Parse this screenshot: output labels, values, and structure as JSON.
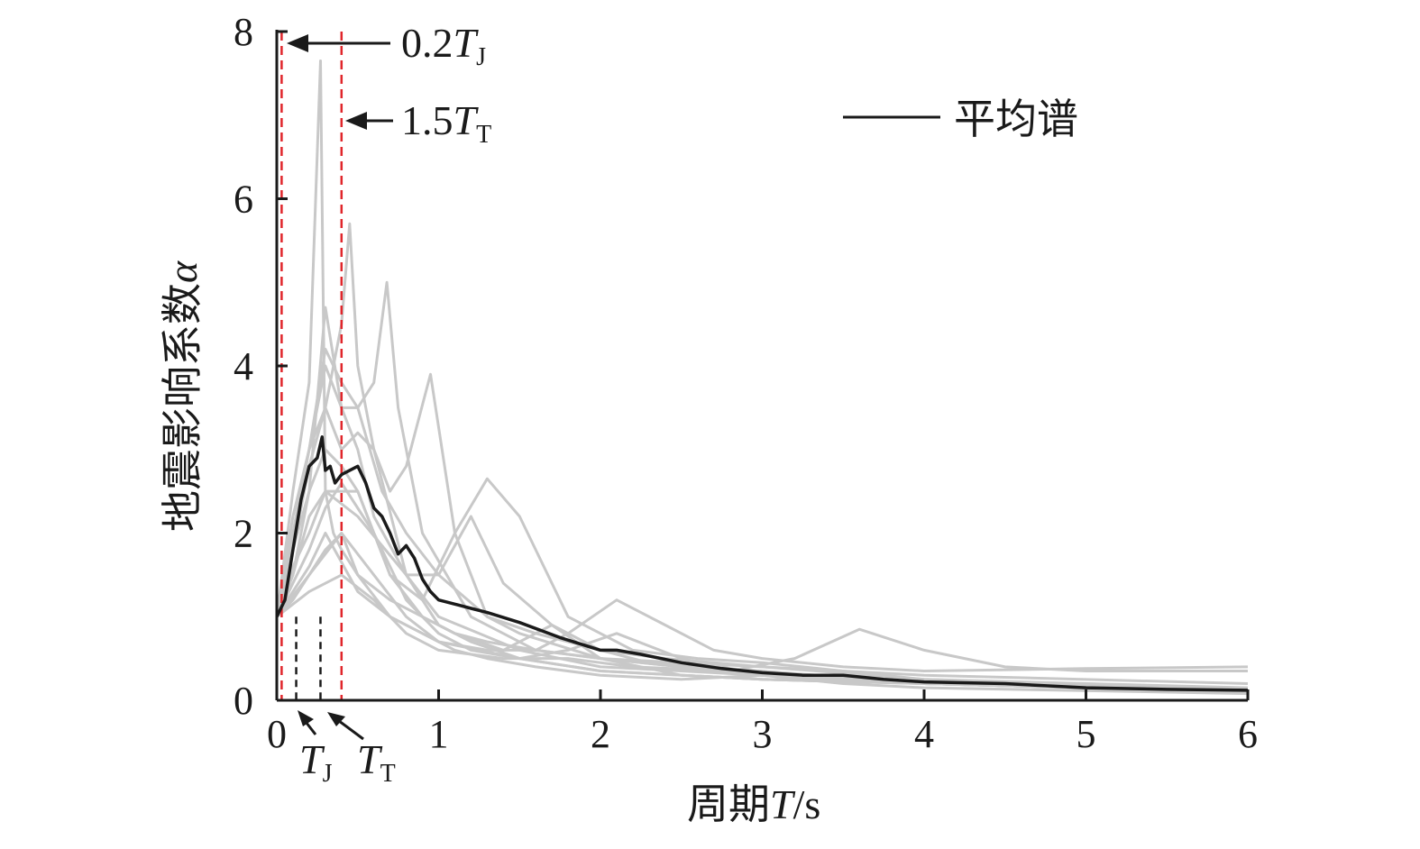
{
  "chart_data": {
    "type": "line",
    "title": "",
    "xlabel_prefix": "周期",
    "xlabel_var": "T",
    "xlabel_unit": "/s",
    "ylabel_prefix": "地震影响系数",
    "ylabel_var": "α",
    "xlim": [
      0,
      6
    ],
    "ylim": [
      0,
      8
    ],
    "xticks": [
      0,
      1,
      2,
      3,
      4,
      5,
      6
    ],
    "yticks": [
      0,
      2,
      4,
      6,
      8
    ],
    "grid": false,
    "legend": {
      "position": "top-right",
      "entries": [
        {
          "label": "平均谱",
          "color": "#1a1a1a"
        }
      ]
    },
    "colors": {
      "mean": "#1a1a1a",
      "records": "#c8c8c8",
      "boundary": "#e0262b",
      "marker": "#1a1a1a"
    },
    "vlines": [
      {
        "x": 0.03,
        "style": "dashed",
        "color": "#e0262b",
        "label": "0.2T_J"
      },
      {
        "x": 0.4,
        "style": "dashed",
        "color": "#e0262b",
        "label": "1.5T_T"
      },
      {
        "x": 0.12,
        "style": "dashed-short",
        "color": "#1a1a1a",
        "label": ""
      },
      {
        "x": 0.27,
        "style": "dashed-short",
        "color": "#1a1a1a",
        "label": "T_J"
      }
    ],
    "annotations": {
      "a1": {
        "base": "0.2",
        "var": "T",
        "sub": "J"
      },
      "a2": {
        "base": "1.5",
        "var": "T",
        "sub": "T"
      },
      "tj": {
        "var": "T",
        "sub": "J"
      },
      "tt": {
        "var": "T",
        "sub": "T"
      }
    },
    "mean_series": {
      "name": "平均谱",
      "x": [
        0.0,
        0.05,
        0.1,
        0.15,
        0.2,
        0.25,
        0.28,
        0.3,
        0.33,
        0.36,
        0.4,
        0.45,
        0.5,
        0.55,
        0.6,
        0.65,
        0.7,
        0.75,
        0.8,
        0.85,
        0.9,
        0.95,
        1.0,
        1.1,
        1.2,
        1.3,
        1.5,
        1.75,
        2.0,
        2.1,
        2.25,
        2.5,
        2.75,
        3.0,
        3.25,
        3.5,
        3.75,
        4.0,
        4.5,
        5.0,
        5.5,
        6.0
      ],
      "y": [
        1.0,
        1.2,
        1.8,
        2.4,
        2.8,
        2.9,
        3.15,
        2.75,
        2.8,
        2.6,
        2.7,
        2.75,
        2.8,
        2.6,
        2.3,
        2.2,
        2.0,
        1.75,
        1.85,
        1.7,
        1.45,
        1.3,
        1.2,
        1.15,
        1.1,
        1.05,
        0.93,
        0.75,
        0.6,
        0.6,
        0.55,
        0.45,
        0.38,
        0.33,
        0.3,
        0.3,
        0.25,
        0.22,
        0.2,
        0.15,
        0.13,
        0.12
      ]
    },
    "series": [
      {
        "x": [
          0,
          0.1,
          0.2,
          0.27,
          0.3,
          0.35,
          0.4,
          0.5,
          0.7,
          1.0,
          1.5,
          2.0,
          3.0,
          4.0,
          5.0,
          6.0
        ],
        "y": [
          1.0,
          2.5,
          3.8,
          7.65,
          2.5,
          2.0,
          1.8,
          1.5,
          1.0,
          0.7,
          0.5,
          0.35,
          0.25,
          0.2,
          0.15,
          0.1
        ]
      },
      {
        "x": [
          0,
          0.1,
          0.2,
          0.3,
          0.4,
          0.45,
          0.5,
          0.6,
          0.8,
          1.0,
          1.5,
          2.0,
          3.0,
          4.0,
          5.0,
          6.0
        ],
        "y": [
          1.0,
          2.0,
          3.0,
          3.5,
          4.5,
          5.7,
          4.0,
          3.0,
          1.5,
          1.0,
          0.6,
          0.4,
          0.3,
          0.2,
          0.15,
          0.1
        ]
      },
      {
        "x": [
          0,
          0.1,
          0.2,
          0.3,
          0.4,
          0.5,
          0.6,
          0.68,
          0.75,
          0.9,
          1.2,
          1.6,
          2.0,
          3.0,
          4.0,
          6.0
        ],
        "y": [
          1.0,
          2.0,
          3.0,
          4.0,
          3.5,
          3.5,
          3.8,
          5.0,
          3.5,
          2.0,
          1.0,
          0.6,
          0.5,
          0.3,
          0.2,
          0.1
        ]
      },
      {
        "x": [
          0,
          0.1,
          0.2,
          0.3,
          0.4,
          0.5,
          0.6,
          0.7,
          0.8,
          0.95,
          1.1,
          1.3,
          1.5,
          2.0,
          3.0,
          4.0,
          6.0
        ],
        "y": [
          1.0,
          1.8,
          2.8,
          3.5,
          3.0,
          3.2,
          3.0,
          2.5,
          2.8,
          3.9,
          2.0,
          1.0,
          0.8,
          0.5,
          0.3,
          0.2,
          0.12
        ]
      },
      {
        "x": [
          0,
          0.1,
          0.2,
          0.3,
          0.5,
          0.7,
          0.9,
          1.1,
          1.3,
          1.5,
          1.8,
          2.2,
          2.6,
          3.0,
          4.0,
          6.0
        ],
        "y": [
          1.0,
          1.5,
          2.2,
          2.5,
          2.5,
          1.5,
          1.2,
          2.0,
          2.65,
          2.2,
          1.0,
          0.6,
          0.5,
          0.45,
          0.25,
          0.12
        ]
      },
      {
        "x": [
          0,
          0.1,
          0.2,
          0.3,
          0.5,
          0.8,
          1.0,
          1.2,
          1.4,
          1.7,
          2.0,
          2.3,
          2.6,
          3.0,
          4.0,
          6.0
        ],
        "y": [
          1.0,
          1.6,
          2.0,
          2.5,
          2.2,
          1.5,
          1.5,
          2.2,
          1.4,
          0.9,
          0.6,
          0.45,
          0.4,
          0.35,
          0.2,
          0.12
        ]
      },
      {
        "x": [
          0,
          0.2,
          0.4,
          0.6,
          0.8,
          1.0,
          1.3,
          1.6,
          1.8,
          2.1,
          2.4,
          2.7,
          3.0,
          3.5,
          4.0,
          5.0,
          6.0
        ],
        "y": [
          1.0,
          1.5,
          2.0,
          1.5,
          1.0,
          0.7,
          0.6,
          0.6,
          0.8,
          1.2,
          0.9,
          0.6,
          0.5,
          0.4,
          0.35,
          0.38,
          0.4
        ]
      },
      {
        "x": [
          0,
          0.2,
          0.4,
          0.6,
          0.8,
          1.0,
          1.4,
          1.8,
          2.2,
          2.8,
          3.2,
          3.6,
          4.0,
          4.5,
          5.0,
          6.0
        ],
        "y": [
          1.0,
          1.3,
          1.5,
          1.2,
          0.8,
          0.6,
          0.5,
          0.5,
          0.4,
          0.35,
          0.5,
          0.85,
          0.6,
          0.4,
          0.35,
          0.35
        ]
      },
      {
        "x": [
          0,
          0.1,
          0.2,
          0.3,
          0.4,
          0.5,
          0.6,
          0.8,
          1.0,
          1.2,
          1.5,
          2.0,
          2.5,
          3.0,
          4.0,
          6.0
        ],
        "y": [
          1.0,
          1.5,
          2.5,
          4.7,
          3.5,
          3.0,
          2.2,
          1.5,
          0.9,
          0.7,
          0.5,
          0.35,
          0.3,
          0.25,
          0.2,
          0.1
        ]
      },
      {
        "x": [
          0,
          0.1,
          0.2,
          0.3,
          0.4,
          0.5,
          0.7,
          0.9,
          1.1,
          1.4,
          1.7,
          2.0,
          2.5,
          3.0,
          4.0,
          6.0
        ],
        "y": [
          1.0,
          1.2,
          1.5,
          1.8,
          2.0,
          1.5,
          1.2,
          1.0,
          0.8,
          0.6,
          0.9,
          0.5,
          0.3,
          0.25,
          0.2,
          0.1
        ]
      },
      {
        "x": [
          0,
          0.1,
          0.2,
          0.3,
          0.4,
          0.6,
          0.8,
          1.0,
          1.2,
          1.5,
          1.8,
          2.1,
          2.5,
          3.0,
          4.0,
          6.0
        ],
        "y": [
          1.0,
          1.4,
          1.8,
          2.3,
          2.6,
          2.0,
          1.2,
          0.8,
          0.6,
          0.5,
          0.6,
          0.8,
          0.5,
          0.3,
          0.2,
          0.12
        ]
      },
      {
        "x": [
          0,
          0.1,
          0.2,
          0.3,
          0.5,
          0.7,
          0.9,
          1.1,
          1.3,
          1.6,
          2.0,
          2.5,
          3.0,
          3.5,
          4.0,
          6.0
        ],
        "y": [
          1.0,
          1.3,
          1.6,
          2.0,
          1.3,
          1.0,
          0.8,
          0.6,
          0.5,
          0.4,
          0.3,
          0.25,
          0.3,
          0.2,
          0.15,
          0.08
        ]
      },
      {
        "x": [
          0,
          0.1,
          0.2,
          0.3,
          0.4,
          0.5,
          0.65,
          0.8,
          1.0,
          1.3,
          1.6,
          2.0,
          2.4,
          3.0,
          4.0,
          6.0
        ],
        "y": [
          1.0,
          2.2,
          3.0,
          4.2,
          3.8,
          3.5,
          2.5,
          2.0,
          1.5,
          1.0,
          0.8,
          0.6,
          0.5,
          0.4,
          0.3,
          0.2
        ]
      },
      {
        "x": [
          0,
          0.1,
          0.2,
          0.3,
          0.4,
          0.5,
          0.6,
          0.7,
          0.9,
          1.1,
          1.3,
          1.6,
          2.0,
          3.0,
          4.0,
          6.0
        ],
        "y": [
          1.0,
          1.8,
          2.5,
          3.0,
          2.8,
          2.5,
          2.0,
          1.5,
          1.0,
          0.8,
          0.7,
          0.6,
          0.5,
          0.4,
          0.25,
          0.15
        ]
      }
    ]
  },
  "legend": {
    "label": "平均谱"
  },
  "axes": {
    "x_title_prefix": "周期",
    "x_title_var": "T",
    "x_title_unit": "/s",
    "y_title_prefix": "地震影响系数",
    "y_title_var": "α"
  }
}
